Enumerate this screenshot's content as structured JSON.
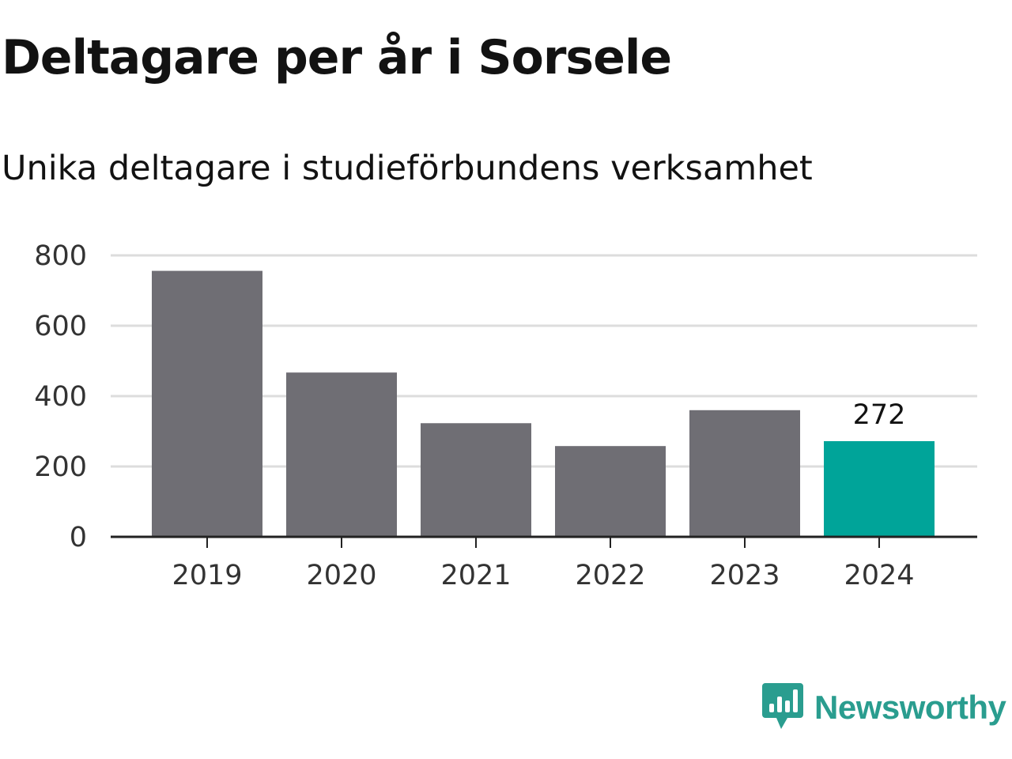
{
  "title": "Deltagare per år i Sorsele",
  "subtitle": "Unika deltagare i studieförbundens verksamhet",
  "brand": {
    "name": "Newsworthy",
    "icon": "bar-chart-speech-bubble-icon",
    "color": "#2a9d8f"
  },
  "colors": {
    "bar": "#6f6e74",
    "highlight": "#00a499",
    "grid": "#dddddd",
    "axis": "#222222"
  },
  "chart_data": {
    "type": "bar",
    "categories": [
      "2019",
      "2020",
      "2021",
      "2022",
      "2023",
      "2024"
    ],
    "values": [
      756,
      467,
      323,
      258,
      360,
      272
    ],
    "highlight_index": 5,
    "data_labels": [
      {
        "index": 5,
        "text": "272"
      }
    ],
    "yticks": [
      0,
      200,
      400,
      600,
      800
    ],
    "ylim": [
      0,
      800
    ],
    "grid": true
  }
}
